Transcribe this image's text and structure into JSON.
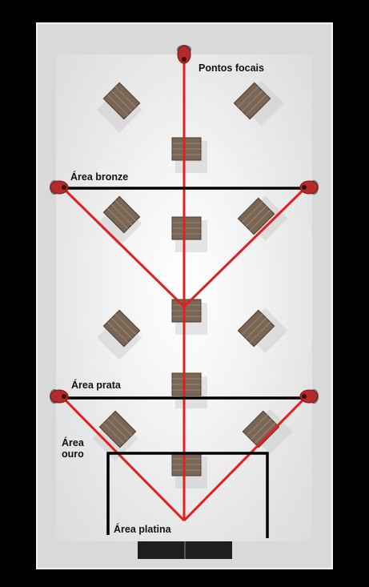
{
  "diagram": {
    "labels": {
      "focal_points": "Pontos focais",
      "bronze": "Área bronze",
      "silver": "Área prata",
      "gold": "Área\nouro",
      "platinum": "Área platina"
    },
    "colors": {
      "background": "#000000",
      "wall": "#d9d9d9",
      "floor": "#f4f4f4",
      "sightline": "#e02020",
      "boundary": "#000000",
      "camera": "#b52a2a",
      "table_top": "#7a6655",
      "table_shadow": "#c8c8c8"
    },
    "cameras": [
      "camera-icon",
      "camera-icon",
      "camera-icon",
      "camera-icon",
      "camera-icon"
    ],
    "tables": [
      "table-icon",
      "table-icon",
      "table-icon",
      "table-icon",
      "table-icon",
      "table-icon",
      "table-icon",
      "table-icon",
      "table-icon",
      "table-icon",
      "table-icon",
      "table-icon",
      "table-icon",
      "table-icon"
    ]
  }
}
